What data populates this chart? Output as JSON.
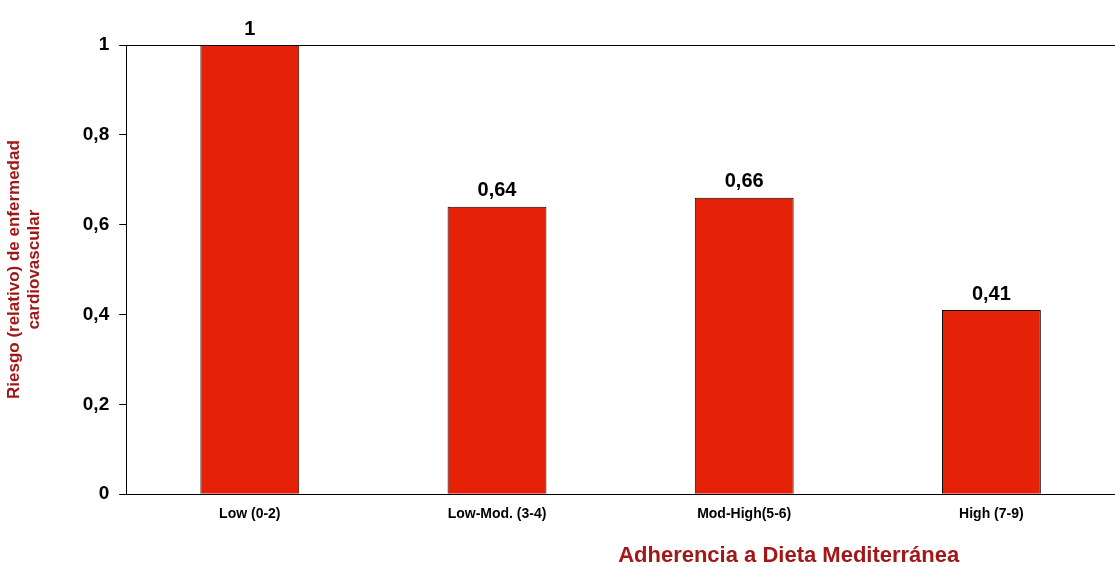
{
  "chart_data": {
    "type": "bar",
    "xlabel": "Adherencia a Dieta Mediterránea",
    "ylabel": "Riesgo (relativo) de enfermedad\ncardiovascular",
    "categories": [
      "Low (0-2)",
      "Low-Mod. (3-4)",
      "Mod-High(5-6)",
      "High (7-9)"
    ],
    "values": [
      1,
      0.64,
      0.66,
      0.41
    ],
    "color": "#e52207",
    "value_labels": [
      "1",
      "0,64",
      "0,66",
      "0,41"
    ],
    "ylim": [
      0,
      1
    ],
    "yticks": [
      {
        "value": 0,
        "label": "0"
      },
      {
        "value": 0.2,
        "label": "0,2"
      },
      {
        "value": 0.4,
        "label": "0,4"
      },
      {
        "value": 0.6,
        "label": "0,6"
      },
      {
        "value": 0.8,
        "label": "0,8"
      },
      {
        "value": 1,
        "label": "1"
      }
    ],
    "grid": false,
    "legend": false
  }
}
